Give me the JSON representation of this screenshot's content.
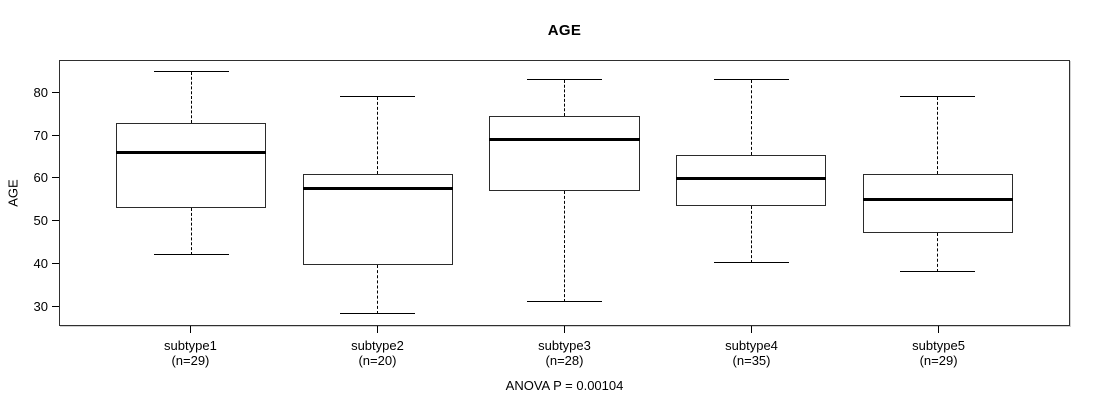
{
  "chart_data": {
    "type": "boxplot",
    "title": "AGE",
    "ylabel": "AGE",
    "xlabel": "",
    "annotation": "ANOVA P = 0.00104",
    "grid": false,
    "ylim": [
      25.5,
      87.5
    ],
    "yticks": [
      30,
      40,
      50,
      60,
      70,
      80
    ],
    "groups": [
      {
        "label": "subtype1",
        "sublabel": "(n=29)",
        "n": 29,
        "min": 42,
        "q1": 53,
        "median": 66,
        "q3": 73,
        "max": 85
      },
      {
        "label": "subtype2",
        "sublabel": "(n=20)",
        "n": 20,
        "min": 28,
        "q1": 39.5,
        "median": 57.5,
        "q3": 61,
        "max": 79
      },
      {
        "label": "subtype3",
        "sublabel": "(n=28)",
        "n": 28,
        "min": 31,
        "q1": 57,
        "median": 69,
        "q3": 74.5,
        "max": 83
      },
      {
        "label": "subtype4",
        "sublabel": "(n=35)",
        "n": 35,
        "min": 40,
        "q1": 53.5,
        "median": 60,
        "q3": 65.5,
        "max": 83
      },
      {
        "label": "subtype5",
        "sublabel": "(n=29)",
        "n": 29,
        "min": 38,
        "q1": 47,
        "median": 55,
        "q3": 61,
        "max": 79
      }
    ],
    "layout": {
      "legend": "none",
      "x_centers_pct": [
        13,
        31.5,
        50,
        68.5,
        87
      ],
      "box_width_pct": 14.9,
      "cap_width_pct": 7.45
    },
    "colors": {
      "line": "#000000",
      "box_fill": "#ffffff",
      "frame": "#2f2f2f",
      "background": "#ffffff"
    }
  }
}
